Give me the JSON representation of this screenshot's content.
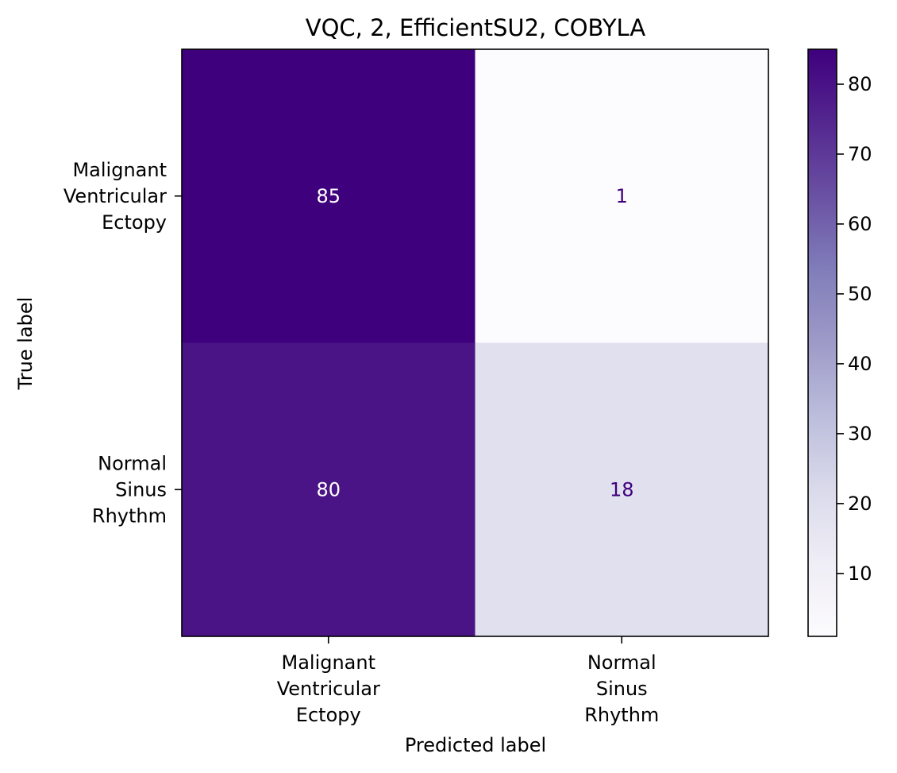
{
  "chart_data": {
    "type": "heatmap",
    "title": "VQC, 2, EfficientSU2, COBYLA",
    "xlabel": "Predicted label",
    "ylabel": "True label",
    "row_labels": [
      [
        "Malignant",
        "Ventricular",
        "Ectopy"
      ],
      [
        "Normal",
        "Sinus",
        "Rhythm"
      ]
    ],
    "col_labels": [
      [
        "Malignant",
        "Ventricular",
        "Ectopy"
      ],
      [
        "Normal",
        "Sinus",
        "Rhythm"
      ]
    ],
    "matrix": [
      [
        85,
        1
      ],
      [
        80,
        18
      ]
    ],
    "colormap": "Purples",
    "colors": {
      "cell_0_0": "#3f007d",
      "cell_0_1": "#fcfbfd",
      "cell_1_0": "#4a1486",
      "cell_1_1": "#e0e0ee",
      "text_dark_bg": "#ffffff",
      "text_light_bg": "#3f007d"
    },
    "colorbar": {
      "range": [
        1,
        85
      ],
      "ticks": [
        10,
        20,
        30,
        40,
        50,
        60,
        70,
        80
      ],
      "tick_labels": [
        "10",
        "20",
        "30",
        "40",
        "50",
        "60",
        "70",
        "80"
      ]
    },
    "grid": false
  }
}
